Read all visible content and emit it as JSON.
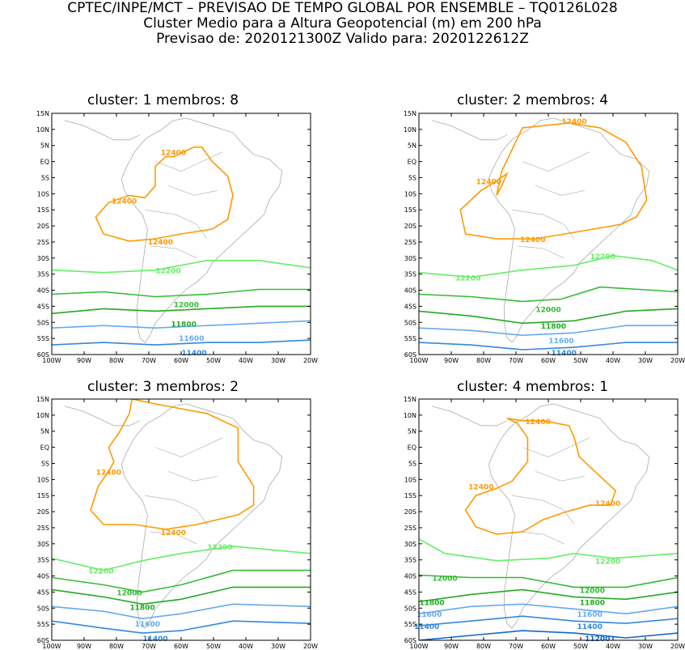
{
  "header": {
    "line1": "CPTEC/INPE/MCT – PREVISAO DE TEMPO GLOBAL POR ENSEMBLE – TQ0126L028",
    "line2": "Cluster Medio para a Altura Geopotencial (m) em 200 hPa",
    "line3": "Previsao de: 2020121300Z    Valido para: 2020122612Z"
  },
  "axes": {
    "lat_ticks": [
      "15N",
      "10N",
      "5N",
      "EQ",
      "5S",
      "10S",
      "15S",
      "20S",
      "25S",
      "30S",
      "35S",
      "40S",
      "45S",
      "50S",
      "55S",
      "60S"
    ],
    "lon_ticks": [
      "100W",
      "90W",
      "80W",
      "70W",
      "60W",
      "50W",
      "40W",
      "30W",
      "20W"
    ]
  },
  "colors": {
    "c12400": "#ff9900",
    "c12200": "#66ee66",
    "c12000": "#33bb33",
    "c11800": "#22aa22",
    "c11600": "#66aaee",
    "c11400": "#3388dd",
    "c11200": "#1166cc",
    "coast": "#aaaaaa",
    "frame": "#000000"
  },
  "panels": [
    {
      "title": "cluster: 1   membros: 8",
      "labels": {
        "a": "12400",
        "b": "12400",
        "c": "12400",
        "d": "12200",
        "e": "12000",
        "f": "11800",
        "g": "11600",
        "h": "11400"
      }
    },
    {
      "title": "cluster: 2   membros: 4",
      "labels": {
        "a": "12400",
        "b": "12400",
        "c": "12400",
        "d": "12200",
        "e": "12200",
        "f": "12000",
        "g": "11800",
        "h": "11600",
        "i": "11400"
      }
    },
    {
      "title": "cluster: 3   membros: 2",
      "labels": {
        "a": "12400",
        "b": "12400",
        "c": "12200",
        "d": "12200",
        "e": "12000",
        "f": "11800",
        "g": "11600",
        "h": "11400"
      }
    },
    {
      "title": "cluster: 4   membros: 1",
      "labels": {
        "a": "12400",
        "b": "12400",
        "c": "12400",
        "d": "12200",
        "e": "12000",
        "f": "12000",
        "g": "11800",
        "h": "11800",
        "i": "11600",
        "j": "11600",
        "k": "11400",
        "l": "11400",
        "m": "11200"
      }
    }
  ]
}
